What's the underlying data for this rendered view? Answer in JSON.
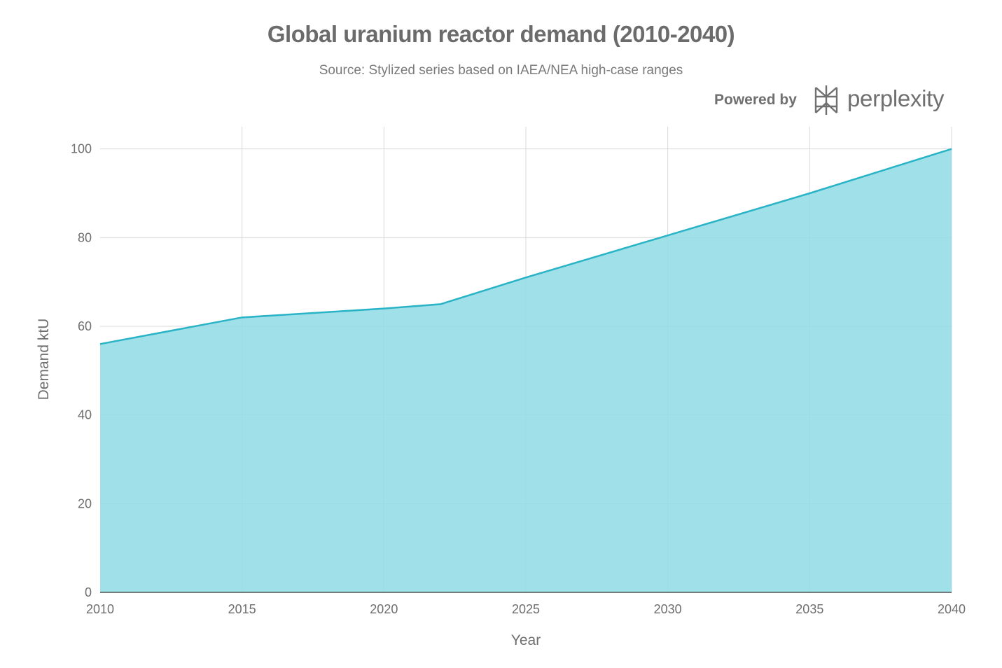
{
  "chart_data": {
    "type": "area",
    "title": "Global uranium reactor demand (2010-2040)",
    "subtitle": "Source: Stylized series based on IAEA/NEA high-case ranges",
    "xlabel": "Year",
    "ylabel": "Demand ktU",
    "xlim": [
      2010,
      2040
    ],
    "ylim": [
      0,
      105
    ],
    "x_ticks": [
      2010,
      2015,
      2020,
      2025,
      2030,
      2035,
      2040
    ],
    "y_ticks": [
      0,
      20,
      40,
      60,
      80,
      100
    ],
    "grid": true,
    "series": [
      {
        "x": [
          2010,
          2015,
          2020,
          2022,
          2025,
          2030,
          2035,
          2040
        ],
        "y": [
          56,
          62,
          64,
          65,
          71,
          80.5,
          90,
          100
        ]
      }
    ],
    "colors": {
      "fill": "#8fdae4",
      "line": "#29b3c6",
      "grid": "#d9d9d9",
      "axis": "#333333"
    }
  },
  "branding": {
    "powered_by": "Powered by",
    "name": "perplexity"
  }
}
